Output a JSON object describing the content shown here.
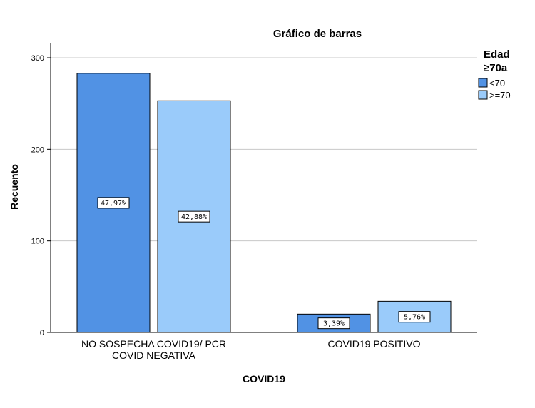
{
  "chart_data": {
    "type": "bar",
    "title": "Gráfico de barras",
    "xlabel": "COVID19",
    "ylabel": "Recuento",
    "ylim": [
      0,
      300
    ],
    "yticks": [
      0,
      100,
      200,
      300
    ],
    "grid": true,
    "legend_position": "top-right",
    "legend_title": [
      "Edad",
      "≥70a"
    ],
    "categories": [
      [
        "NO SOSPECHA COVID19/ PCR",
        "COVID NEGATIVA"
      ],
      [
        "COVID19 POSITIVO"
      ]
    ],
    "series": [
      {
        "name": "<70",
        "color": "#5192E4",
        "values": [
          283,
          20
        ],
        "labels": [
          "47,97%",
          "3,39%"
        ]
      },
      {
        "name": ">=70",
        "color": "#9ACBFA",
        "values": [
          253,
          34
        ],
        "labels": [
          "42,88%",
          "5,76%"
        ]
      }
    ]
  }
}
